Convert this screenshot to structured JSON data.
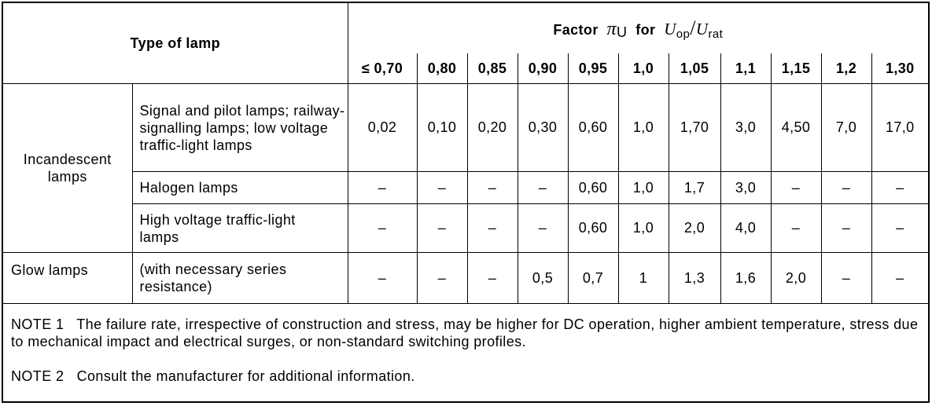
{
  "header": {
    "type_of_lamp": "Type of lamp",
    "factor_label": "Factor",
    "factor_symbol": "π",
    "factor_subscript": "U",
    "for_label": "for",
    "ratio_num_var": "U",
    "ratio_num_sub": "op",
    "ratio_slash": "/",
    "ratio_den_var": "U",
    "ratio_den_sub": "rat",
    "voltages": [
      "≤ 0,70",
      "0,80",
      "0,85",
      "0,90",
      "0,95",
      "1,0",
      "1,05",
      "1,1",
      "1,15",
      "1,2",
      "1,30"
    ]
  },
  "groups": {
    "incandescent": "Incandescent lamps",
    "glow": "Glow lamps"
  },
  "rows": [
    {
      "type": "Signal and pilot lamps; railway-signalling lamps; low voltage traffic-light lamps",
      "values": [
        "0,02",
        "0,10",
        "0,20",
        "0,30",
        "0,60",
        "1,0",
        "1,70",
        "3,0",
        "4,50",
        "7,0",
        "17,0"
      ]
    },
    {
      "type": "Halogen lamps",
      "values": [
        "–",
        "–",
        "–",
        "–",
        "0,60",
        "1,0",
        "1,7",
        "3,0",
        "–",
        "–",
        "–"
      ]
    },
    {
      "type": "High voltage traffic-light lamps",
      "values": [
        "–",
        "–",
        "–",
        "–",
        "0,60",
        "1,0",
        "2,0",
        "4,0",
        "–",
        "–",
        "–"
      ]
    },
    {
      "type": "(with necessary series resistance)",
      "values": [
        "–",
        "–",
        "–",
        "0,5",
        "0,7",
        "1",
        "1,3",
        "1,6",
        "2,0",
        "–",
        "–"
      ]
    }
  ],
  "notes": {
    "note1": "NOTE 1   The failure rate, irrespective of construction and stress, may be higher for DC operation, higher ambient temperature, stress due to mechanical impact and electrical surges, or non-standard switching profiles.",
    "note2": "NOTE 2   Consult the manufacturer for additional information."
  }
}
